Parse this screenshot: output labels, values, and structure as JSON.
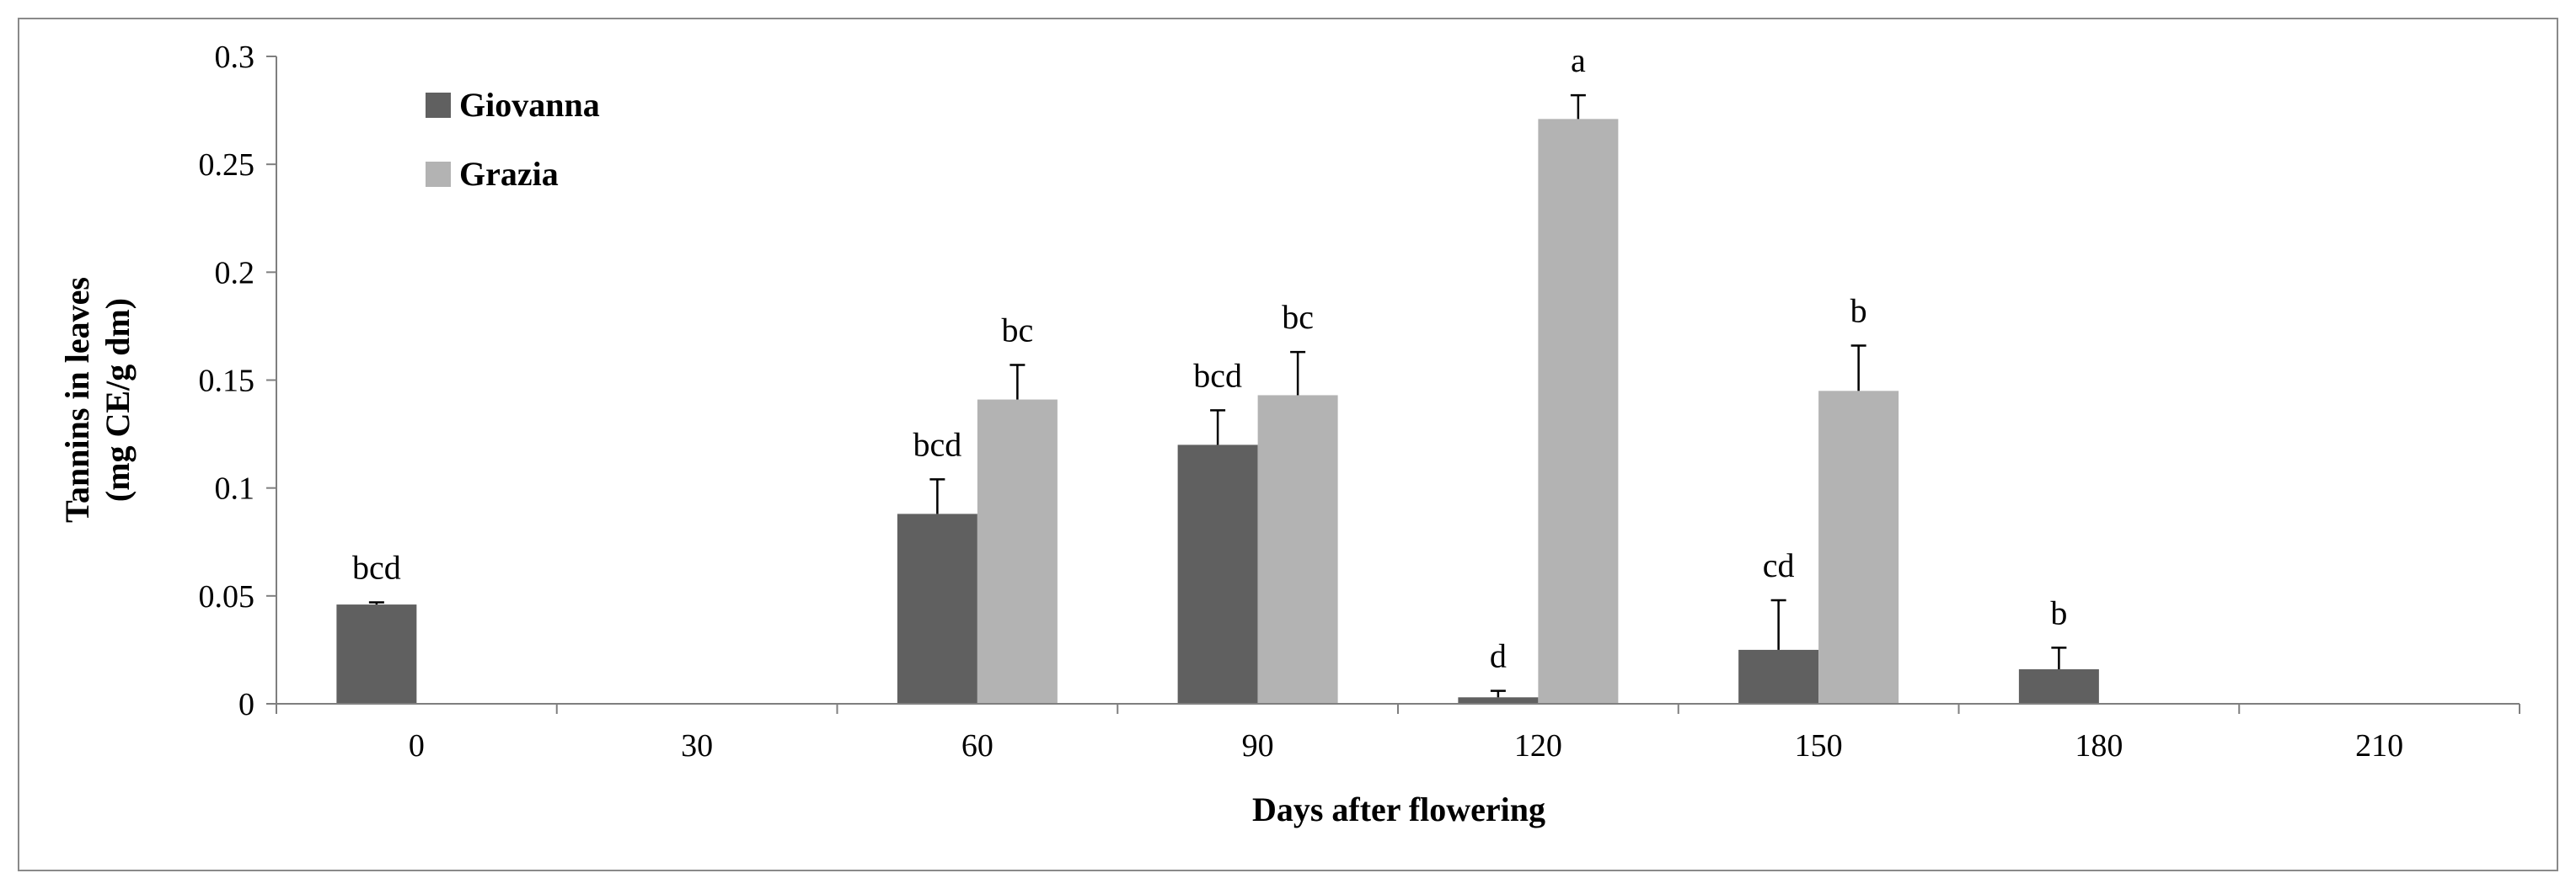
{
  "chart_data": {
    "type": "bar",
    "title": "",
    "xlabel": "Days after flowering",
    "ylabel_lines": [
      "Tannins  in leaves",
      "(mg  CE/g  dm)"
    ],
    "categories": [
      "0",
      "30",
      "60",
      "90",
      "120",
      "150",
      "180",
      "210"
    ],
    "ylim": [
      0,
      0.3
    ],
    "yticks": [
      0,
      0.05,
      0.1,
      0.15,
      0.2,
      0.25,
      0.3
    ],
    "ytick_labels": [
      "0",
      "0.05",
      "0.1",
      "0.15",
      "0.2",
      "0.25",
      "0.3"
    ],
    "legend_position": "top-left",
    "series": [
      {
        "name": "Giovanna",
        "color": "#606060",
        "values": [
          0.046,
          null,
          0.088,
          0.12,
          0.003,
          0.025,
          0.016,
          null
        ],
        "errors": [
          0.001,
          null,
          0.016,
          0.016,
          0.003,
          0.023,
          0.01,
          null
        ],
        "letters": [
          "bcd",
          "",
          "bcd",
          "bcd",
          "d",
          "cd",
          "b",
          ""
        ]
      },
      {
        "name": "Grazia",
        "color": "#b3b3b3",
        "values": [
          null,
          null,
          0.141,
          0.143,
          0.271,
          0.145,
          null,
          null
        ],
        "errors": [
          null,
          null,
          0.016,
          0.02,
          0.011,
          0.021,
          null,
          null
        ],
        "letters": [
          "",
          "",
          "bc",
          "bc",
          "a",
          "b",
          "",
          ""
        ]
      }
    ]
  }
}
